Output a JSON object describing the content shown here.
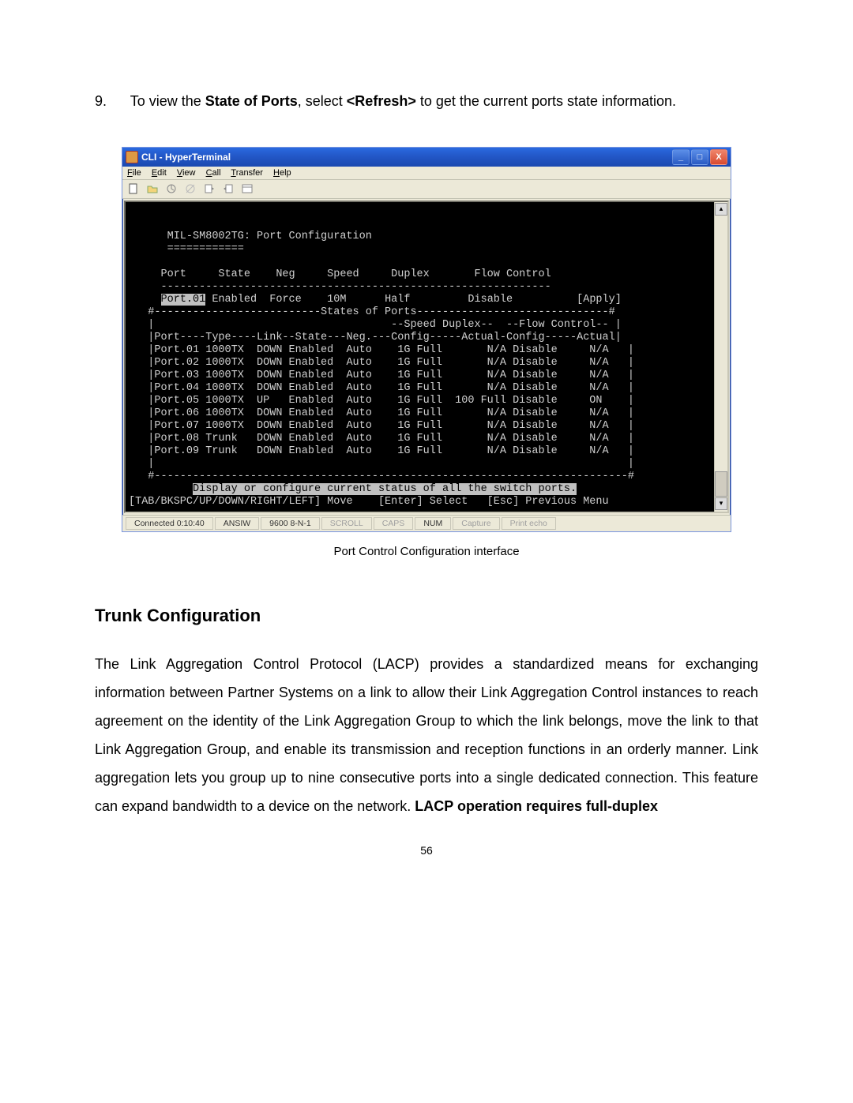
{
  "instruction": {
    "number": "9.",
    "pre": "To view the ",
    "bold1": "State of Ports",
    "mid": ", select ",
    "bold2": "<Refresh>",
    "post": " to get the current ports state information."
  },
  "window": {
    "title": "CLI - HyperTerminal",
    "menus": [
      "File",
      "Edit",
      "View",
      "Call",
      "Transfer",
      "Help"
    ]
  },
  "terminal": {
    "header": "      MIL-SM8002TG: Port Configuration",
    "sep1": "      ============",
    "cols": "     Port     State    Neg     Speed     Duplex       Flow Control",
    "dashA": "     -------------------------------------------------------------",
    "editPort": "Port.01",
    "editRest": " Enabled  Force    10M      Half         Disable          [Apply]",
    "stHeader": "   #--------------------------States of Ports------------------------------#",
    "stSub1": "   |                                     --Speed Duplex--  --Flow Control-- |",
    "stSub2": "   |Port----Type----Link--State---Neg.---Config-----Actual-Config-----Actual|",
    "rows": [
      "   |Port.01 1000TX  DOWN Enabled  Auto    1G Full       N/A Disable     N/A   |",
      "   |Port.02 1000TX  DOWN Enabled  Auto    1G Full       N/A Disable     N/A   |",
      "   |Port.03 1000TX  DOWN Enabled  Auto    1G Full       N/A Disable     N/A   |",
      "   |Port.04 1000TX  DOWN Enabled  Auto    1G Full       N/A Disable     N/A   |",
      "   |Port.05 1000TX  UP   Enabled  Auto    1G Full  100 Full Disable     ON    |",
      "   |Port.06 1000TX  DOWN Enabled  Auto    1G Full       N/A Disable     N/A   |",
      "   |Port.07 1000TX  DOWN Enabled  Auto    1G Full       N/A Disable     N/A   |",
      "   |Port.08 Trunk   DOWN Enabled  Auto    1G Full       N/A Disable     N/A   |",
      "   |Port.09 Trunk   DOWN Enabled  Auto    1G Full       N/A Disable     N/A   |"
    ],
    "empty": "   |                                                                          |",
    "stFoot": "   #--------------------------------------------------------------------------#",
    "help1pre": "          ",
    "help1": "Display or configure current status of all the switch ports.",
    "help2": "[TAB/BKSPC/UP/DOWN/RIGHT/LEFT] Move    [Enter] Select   [Esc] Previous Menu"
  },
  "status": {
    "conn": "Connected 0:10:40",
    "term": "ANSIW",
    "baud": "9600 8-N-1",
    "f1": "SCROLL",
    "f2": "CAPS",
    "f3": "NUM",
    "f4": "Capture",
    "f5": "Print echo"
  },
  "caption": "Port Control Configuration interface",
  "section": "Trunk Configuration",
  "paragraph_pre": "The Link Aggregation Control Protocol (LACP) provides a standardized means for exchanging information between Partner Systems on a link to allow their Link Aggregation Control instances to reach agreement on the identity of the Link Aggregation Group to which the link belongs, move the link to that Link Aggregation Group, and enable its transmission and reception functions in an orderly manner. Link aggregation lets you group up to nine consecutive ports into a single dedicated connection. This feature can expand bandwidth to a device on the network. ",
  "paragraph_bold": "LACP operation requires full-duplex",
  "page_number": "56"
}
